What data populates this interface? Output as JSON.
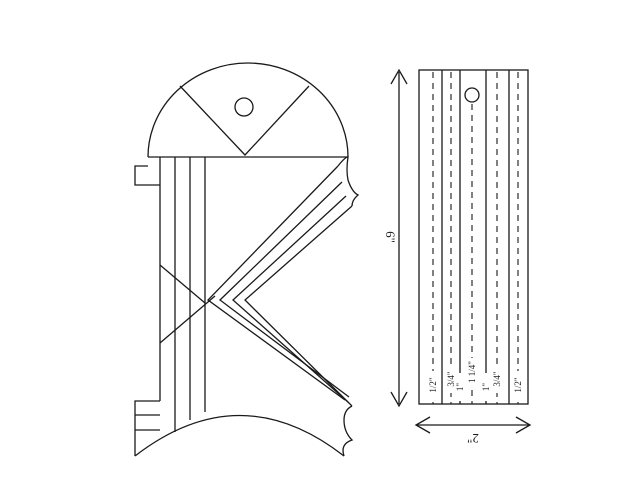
{
  "ruler_template": {
    "height_label": "6\"",
    "width_label": "2\"",
    "line_labels": [
      "1/2\"",
      "3/4\"",
      "1\"",
      "1 1/4\"",
      "1\"",
      "3/4\"",
      "1/2\""
    ]
  },
  "colors": {
    "stroke": "#1a1a1a",
    "background": "#ffffff"
  }
}
